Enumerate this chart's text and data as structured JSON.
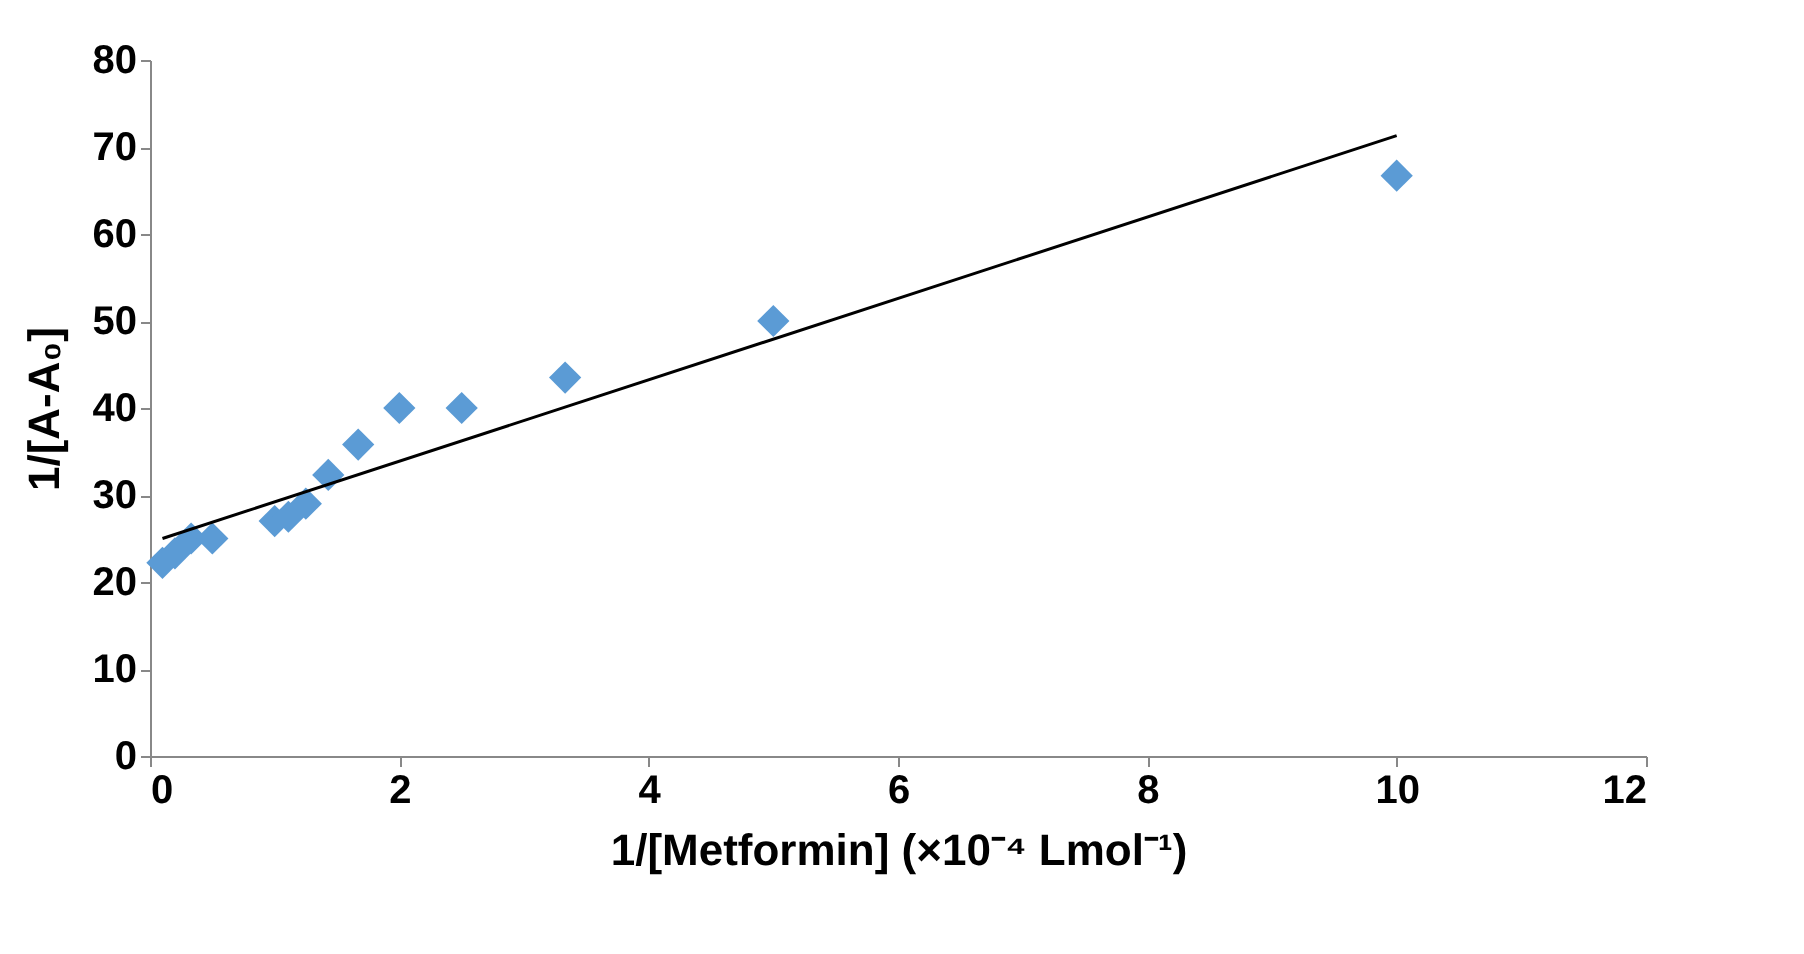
{
  "chart_data": {
    "type": "scatter",
    "xlabel": "1/[Metformin] (×10⁻⁴ Lmol⁻¹)",
    "ylabel": "1/[A-A₀]",
    "xlim": [
      0,
      12
    ],
    "xticks": [
      0,
      2,
      4,
      6,
      8,
      10,
      12
    ],
    "ylim": [
      0,
      80
    ],
    "yticks": [
      0,
      10,
      20,
      30,
      40,
      50,
      60,
      70,
      80
    ],
    "grid": false,
    "series": [
      {
        "color": "#5b9bd5",
        "marker": "diamond",
        "x": [
          0.1,
          0.2,
          0.33,
          0.5,
          1,
          1.11,
          1.25,
          1.43,
          1.67,
          2,
          2.5,
          3.33,
          5,
          10
        ],
        "values": [
          22.2,
          23.3,
          25,
          25,
          27,
          27.5,
          29,
          32.3,
          35.8,
          40,
          40,
          43.5,
          50,
          66.7
        ]
      },
      {
        "type": "line",
        "color": "#000000",
        "line_style": "solid",
        "x": [
          0.1,
          10
        ],
        "values": [
          25,
          71.3
        ]
      }
    ]
  }
}
